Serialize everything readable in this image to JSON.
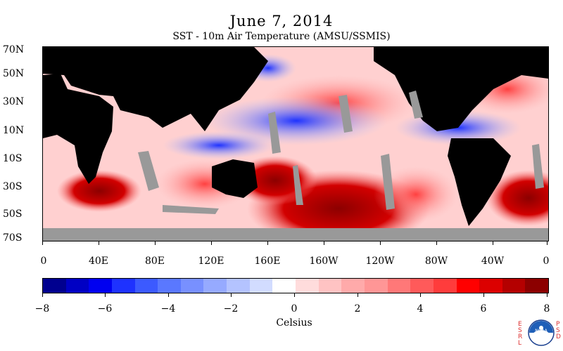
{
  "header": {
    "title": "June 7, 2014",
    "subtitle": "SST - 10m Air Temperature (AMSU/SSMIS)"
  },
  "map": {
    "lat_labels": [
      "70N",
      "50N",
      "30N",
      "10N",
      "10S",
      "30S",
      "50S",
      "70S"
    ],
    "lon_labels": [
      "0",
      "40E",
      "80E",
      "120E",
      "160E",
      "160W",
      "120W",
      "80W",
      "40W",
      "0"
    ],
    "land_color": "#000000",
    "no_data_color": "#999999"
  },
  "colorbar": {
    "tick_labels": [
      "−8",
      "−6",
      "−4",
      "−2",
      "0",
      "2",
      "4",
      "6",
      "8"
    ],
    "range": [
      -8,
      8
    ],
    "units": "Celsius",
    "colors": [
      "#00008f",
      "#0000c4",
      "#0000f0",
      "#1e32ff",
      "#3c5aff",
      "#5a78ff",
      "#7890ff",
      "#96aaff",
      "#b4c3ff",
      "#d2dcff",
      "#ffffff",
      "#ffdcdc",
      "#ffc3c3",
      "#ffaaaa",
      "#ff9696",
      "#ff7878",
      "#ff5a5a",
      "#ff3c3c",
      "#ff0000",
      "#dc0000",
      "#b40000",
      "#8c0000"
    ]
  },
  "logos": {
    "left_vertical": "ESRL",
    "right_vertical": "PSD",
    "emblem": "NOAA",
    "emblem_icon": "noaa-logo-icon"
  }
}
